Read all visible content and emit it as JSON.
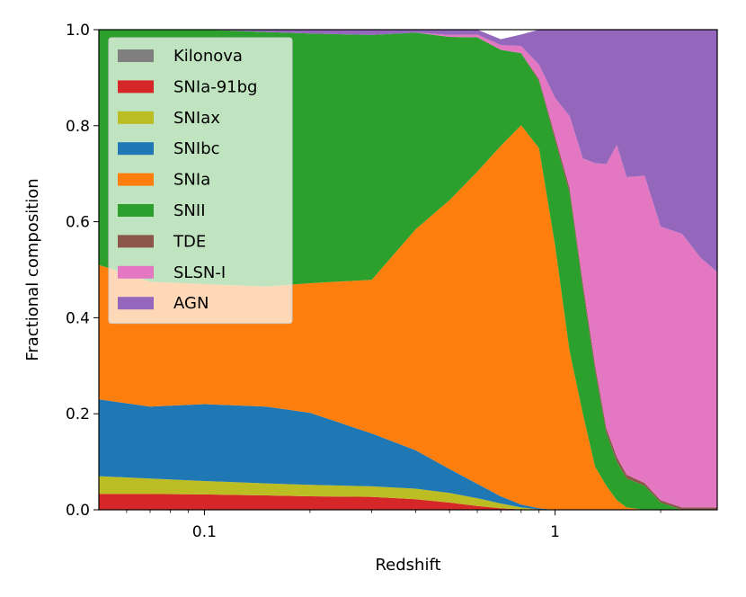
{
  "chart_data": {
    "type": "area",
    "xlabel": "Redshift",
    "ylabel": "Fractional composition",
    "xscale": "log",
    "xlim": [
      0.05,
      2.9
    ],
    "ylim": [
      0.0,
      1.0
    ],
    "xticks": [
      {
        "value": 0.1,
        "label": "0.1"
      },
      {
        "value": 1,
        "label": "1"
      }
    ],
    "yticks": [
      {
        "value": 0.0,
        "label": "0.0"
      },
      {
        "value": 0.2,
        "label": "0.2"
      },
      {
        "value": 0.4,
        "label": "0.4"
      },
      {
        "value": 0.6,
        "label": "0.6"
      },
      {
        "value": 0.8,
        "label": "0.8"
      },
      {
        "value": 1.0,
        "label": "1.0"
      }
    ],
    "legend_position": "top-left",
    "grid": false,
    "stacked": true,
    "x": [
      0.05,
      0.07,
      0.1,
      0.15,
      0.2,
      0.3,
      0.4,
      0.5,
      0.6,
      0.7,
      0.8,
      0.9,
      1.0,
      1.1,
      1.2,
      1.3,
      1.4,
      1.5,
      1.6,
      1.8,
      2.0,
      2.3,
      2.6,
      2.9
    ],
    "series": [
      {
        "name": "SNIa-91bg",
        "color": "#d62728",
        "values": [
          0.033,
          0.033,
          0.032,
          0.03,
          0.028,
          0.027,
          0.022,
          0.015,
          0.008,
          0.003,
          0.001,
          0,
          0,
          0,
          0,
          0,
          0,
          0,
          0,
          0,
          0,
          0,
          0,
          0
        ]
      },
      {
        "name": "SNIax",
        "color": "#bcbd22",
        "values": [
          0.037,
          0.032,
          0.028,
          0.025,
          0.024,
          0.022,
          0.022,
          0.02,
          0.016,
          0.01,
          0.004,
          0.001,
          0,
          0,
          0,
          0,
          0,
          0,
          0,
          0,
          0,
          0,
          0,
          0
        ]
      },
      {
        "name": "SNIbc",
        "color": "#1f77b4",
        "values": [
          0.16,
          0.15,
          0.16,
          0.16,
          0.15,
          0.11,
          0.08,
          0.05,
          0.03,
          0.015,
          0.006,
          0.002,
          0,
          0,
          0,
          0,
          0,
          0,
          0,
          0,
          0,
          0,
          0,
          0
        ]
      },
      {
        "name": "SNIa",
        "color": "#ff7f0e",
        "values": [
          0.28,
          0.26,
          0.25,
          0.25,
          0.27,
          0.32,
          0.46,
          0.56,
          0.65,
          0.73,
          0.79,
          0.75,
          0.55,
          0.33,
          0.2,
          0.09,
          0.05,
          0.02,
          0.005,
          0,
          0,
          0,
          0,
          0
        ]
      },
      {
        "name": "SNII",
        "color": "#2ca02c",
        "values": [
          0.49,
          0.53,
          0.53,
          0.53,
          0.52,
          0.51,
          0.41,
          0.34,
          0.28,
          0.2,
          0.15,
          0.14,
          0.22,
          0.33,
          0.26,
          0.2,
          0.11,
          0.08,
          0.06,
          0.05,
          0.015,
          0,
          0,
          0
        ]
      },
      {
        "name": "TDE",
        "color": "#8c564b",
        "values": [
          0,
          0,
          0,
          0,
          0,
          0,
          0,
          0,
          0,
          0,
          0,
          0.004,
          0.008,
          0.01,
          0.012,
          0.012,
          0.01,
          0.01,
          0.008,
          0.006,
          0.005,
          0.005,
          0.005,
          0.005
        ]
      },
      {
        "name": "SLSN-I",
        "color": "#e377c2",
        "values": [
          0,
          0,
          0,
          0,
          0,
          0,
          0,
          0.004,
          0.006,
          0.01,
          0.015,
          0.03,
          0.08,
          0.15,
          0.26,
          0.42,
          0.55,
          0.65,
          0.62,
          0.64,
          0.57,
          0.57,
          0.52,
          0.49
        ]
      },
      {
        "name": "AGN",
        "color": "#9467bd",
        "values": [
          0,
          0,
          0,
          0.005,
          0.008,
          0.011,
          0.006,
          0.011,
          0.01,
          0.012,
          0.024,
          0.073,
          0.142,
          0.18,
          0.268,
          0.278,
          0.28,
          0.24,
          0.307,
          0.304,
          0.41,
          0.425,
          0.475,
          0.505
        ]
      },
      {
        "name": "Kilonova",
        "color": "#7f7f7f",
        "values": [
          0,
          0,
          0,
          0,
          0,
          0,
          0,
          0,
          0,
          0,
          0,
          0,
          0,
          0,
          0,
          0,
          0,
          0,
          0,
          0,
          0,
          0,
          0,
          0
        ]
      }
    ],
    "legend": [
      {
        "name": "Kilonova",
        "color": "#7f7f7f"
      },
      {
        "name": "SNIa-91bg",
        "color": "#d62728"
      },
      {
        "name": "SNIax",
        "color": "#bcbd22"
      },
      {
        "name": "SNIbc",
        "color": "#1f77b4"
      },
      {
        "name": "SNIa",
        "color": "#ff7f0e"
      },
      {
        "name": "SNII",
        "color": "#2ca02c"
      },
      {
        "name": "TDE",
        "color": "#8c564b"
      },
      {
        "name": "SLSN-I",
        "color": "#e377c2"
      },
      {
        "name": "AGN",
        "color": "#9467bd"
      }
    ]
  }
}
